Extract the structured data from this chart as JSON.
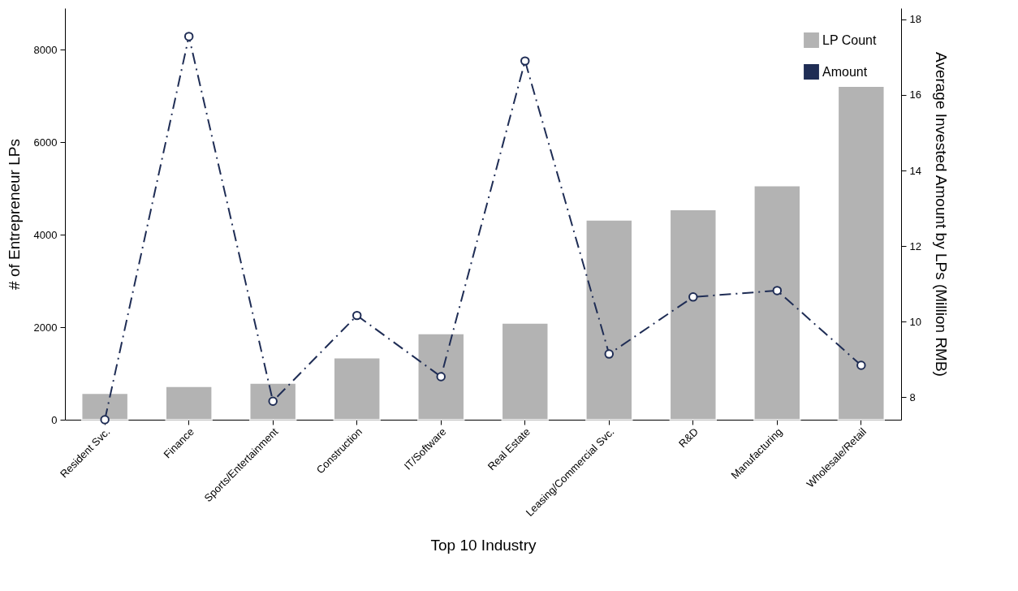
{
  "chart_data": {
    "type": "bar",
    "xlabel": "Top 10 Industry",
    "ylabel": "# of Entrepreneur LPs",
    "y2label": "Average Invested Amount by LPs (Million RMB)",
    "categories": [
      "Resident Svc.",
      "Finance",
      "Sports/Entertainment",
      "Construction",
      "IT/Software",
      "Real Estate",
      "Leasing/Commercial Svc.",
      "R&D",
      "Manufacturing",
      "Wholesale/Retail"
    ],
    "series": [
      {
        "name": "LP Count",
        "color": "#b3b3b3",
        "values": [
          570,
          720,
          790,
          1340,
          1860,
          2090,
          4320,
          4540,
          5060,
          7210
        ]
      },
      {
        "name": "Amount",
        "type": "line",
        "axis": "y2",
        "color": "#1f2d55",
        "marker": "circle",
        "line_style": "dashed",
        "values": [
          7.4,
          17.55,
          7.89,
          10.16,
          8.54,
          16.9,
          9.14,
          10.65,
          10.82,
          8.84
        ]
      }
    ],
    "ylim": [
      0,
      8900
    ],
    "yticks": [
      0,
      2000,
      4000,
      6000,
      8000
    ],
    "y2lim": [
      7.4,
      18.3
    ],
    "y2ticks": [
      8,
      10,
      12,
      14,
      16,
      18
    ],
    "grid": false,
    "legend": "top right"
  }
}
